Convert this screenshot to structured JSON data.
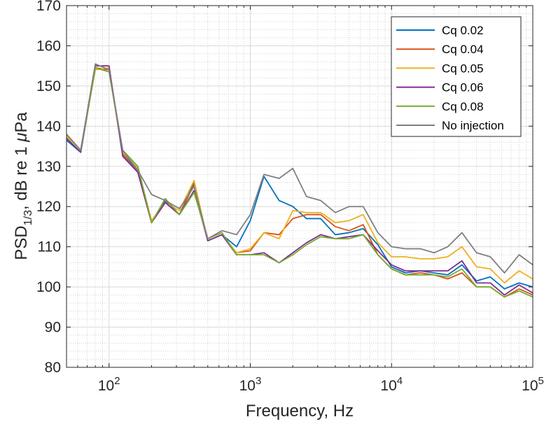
{
  "chart_data": {
    "type": "line",
    "xscale": "log",
    "xlim": [
      50,
      100000
    ],
    "ylim": [
      80,
      170
    ],
    "grid": true,
    "minor_grid": true,
    "legend_position": "top-right",
    "xlabel": "Frequency, Hz",
    "ylabel": {
      "base": "PSD",
      "subscript": "1/3",
      "rest": ", dB re 1 ",
      "greek": "μ",
      "tail": "Pa"
    },
    "yticks": [
      "80",
      "90",
      "100",
      "110",
      "120",
      "130",
      "140",
      "150",
      "160",
      "170"
    ],
    "xticks": [
      {
        "base": "10",
        "exp": "2"
      },
      {
        "base": "10",
        "exp": "3"
      },
      {
        "base": "10",
        "exp": "4"
      },
      {
        "base": "10",
        "exp": "5"
      }
    ],
    "x": [
      50,
      63,
      80,
      100,
      125,
      160,
      200,
      250,
      315,
      400,
      500,
      630,
      800,
      1000,
      1250,
      1600,
      2000,
      2500,
      3150,
      4000,
      5000,
      6300,
      8000,
      10000,
      12500,
      16000,
      20000,
      25000,
      31500,
      40000,
      50000,
      63000,
      80000,
      100000
    ],
    "series": [
      {
        "name": "Cq 0.02",
        "color": "#0072BD",
        "values": [
          136.5,
          133.5,
          154.5,
          154.0,
          133.5,
          129.0,
          116.0,
          121.5,
          118.0,
          126.0,
          111.5,
          113.0,
          110.0,
          116.5,
          127.5,
          121.5,
          120.0,
          117.0,
          117.0,
          113.0,
          113.5,
          114.5,
          110.5,
          105.0,
          103.5,
          104.0,
          103.5,
          103.0,
          105.5,
          101.5,
          102.5,
          99.5,
          101.0,
          100.0
        ]
      },
      {
        "name": "Cq 0.04",
        "color": "#D95319",
        "values": [
          138.0,
          134.0,
          154.5,
          154.0,
          133.0,
          128.5,
          116.0,
          121.0,
          118.0,
          125.5,
          111.5,
          113.0,
          108.5,
          109.0,
          113.5,
          113.0,
          117.0,
          118.0,
          118.0,
          115.0,
          114.0,
          115.5,
          108.0,
          104.5,
          103.0,
          103.5,
          103.0,
          102.0,
          103.5,
          100.0,
          100.0,
          97.5,
          99.5,
          98.0
        ]
      },
      {
        "name": "Cq 0.05",
        "color": "#EDB120",
        "values": [
          137.5,
          134.0,
          154.0,
          154.5,
          133.5,
          129.5,
          116.5,
          121.0,
          119.0,
          126.5,
          111.5,
          113.0,
          108.5,
          109.5,
          113.5,
          112.0,
          119.0,
          118.5,
          118.5,
          116.0,
          116.5,
          118.0,
          111.0,
          107.5,
          107.5,
          107.0,
          107.0,
          107.5,
          110.0,
          105.0,
          104.5,
          101.0,
          104.0,
          102.0
        ]
      },
      {
        "name": "Cq 0.06",
        "color": "#7E2F8E",
        "values": [
          137.0,
          133.5,
          155.0,
          155.0,
          132.5,
          128.5,
          116.0,
          121.0,
          118.0,
          124.0,
          111.5,
          113.0,
          108.0,
          108.0,
          108.5,
          106.0,
          108.5,
          111.0,
          113.0,
          112.0,
          112.5,
          113.0,
          109.0,
          105.5,
          104.0,
          104.0,
          104.0,
          104.0,
          106.5,
          101.0,
          101.0,
          98.0,
          100.5,
          98.5
        ]
      },
      {
        "name": "Cq 0.08",
        "color": "#77AC30",
        "values": [
          138.0,
          134.0,
          154.5,
          153.5,
          134.0,
          130.0,
          116.0,
          122.0,
          118.0,
          123.5,
          112.0,
          113.5,
          108.0,
          108.0,
          108.0,
          106.0,
          108.0,
          110.5,
          112.5,
          112.0,
          112.0,
          113.0,
          108.0,
          104.5,
          103.0,
          103.0,
          103.0,
          102.5,
          104.5,
          100.0,
          100.0,
          97.5,
          99.0,
          97.5
        ]
      },
      {
        "name": "No injection",
        "color": "#808080",
        "values": [
          138.0,
          134.0,
          155.5,
          154.0,
          134.0,
          129.0,
          123.0,
          121.5,
          119.5,
          125.0,
          112.0,
          114.0,
          113.0,
          118.0,
          128.0,
          127.0,
          129.5,
          122.5,
          121.5,
          118.5,
          120.0,
          120.0,
          113.5,
          110.0,
          109.5,
          109.5,
          108.5,
          110.0,
          113.5,
          108.5,
          107.5,
          103.5,
          108.0,
          105.5
        ]
      }
    ]
  }
}
